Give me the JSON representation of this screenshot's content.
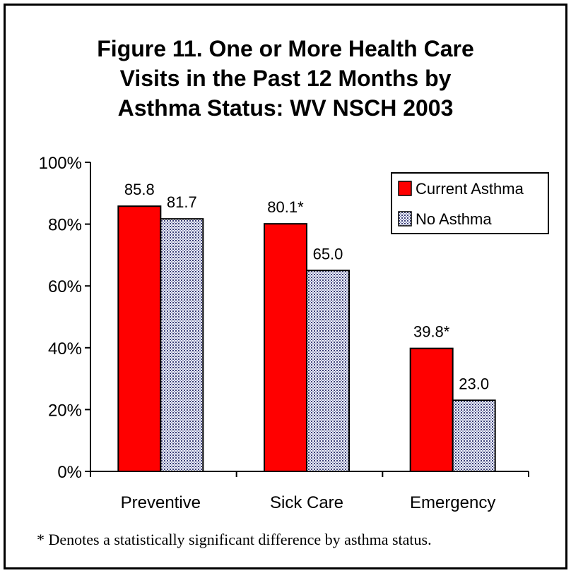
{
  "title_lines": [
    "Figure 11.  One or More Health Care",
    "Visits in the Past 12 Months by",
    "Asthma Status: WV NSCH 2003"
  ],
  "footnote": "* Denotes a statistically significant difference by asthma status.",
  "colors": {
    "current_asthma": "#ff0000",
    "no_asthma_pattern_bg": "#ffffff",
    "no_asthma_pattern_fg": "#3a3f7a"
  },
  "chart_data": {
    "type": "bar",
    "categories": [
      "Preventive",
      "Sick Care",
      "Emergency"
    ],
    "series": [
      {
        "name": "Current Asthma",
        "values": [
          85.8,
          80.1,
          39.8
        ],
        "labels": [
          "85.8",
          "80.1*",
          "39.8*"
        ]
      },
      {
        "name": "No Asthma",
        "values": [
          81.7,
          65.0,
          23.0
        ],
        "labels": [
          "81.7",
          "65.0",
          "23.0"
        ]
      }
    ],
    "y_ticks": [
      "0%",
      "20%",
      "40%",
      "60%",
      "80%",
      "100%"
    ],
    "ylim": [
      0,
      100
    ],
    "grid": false,
    "legend_position": "top-right"
  }
}
